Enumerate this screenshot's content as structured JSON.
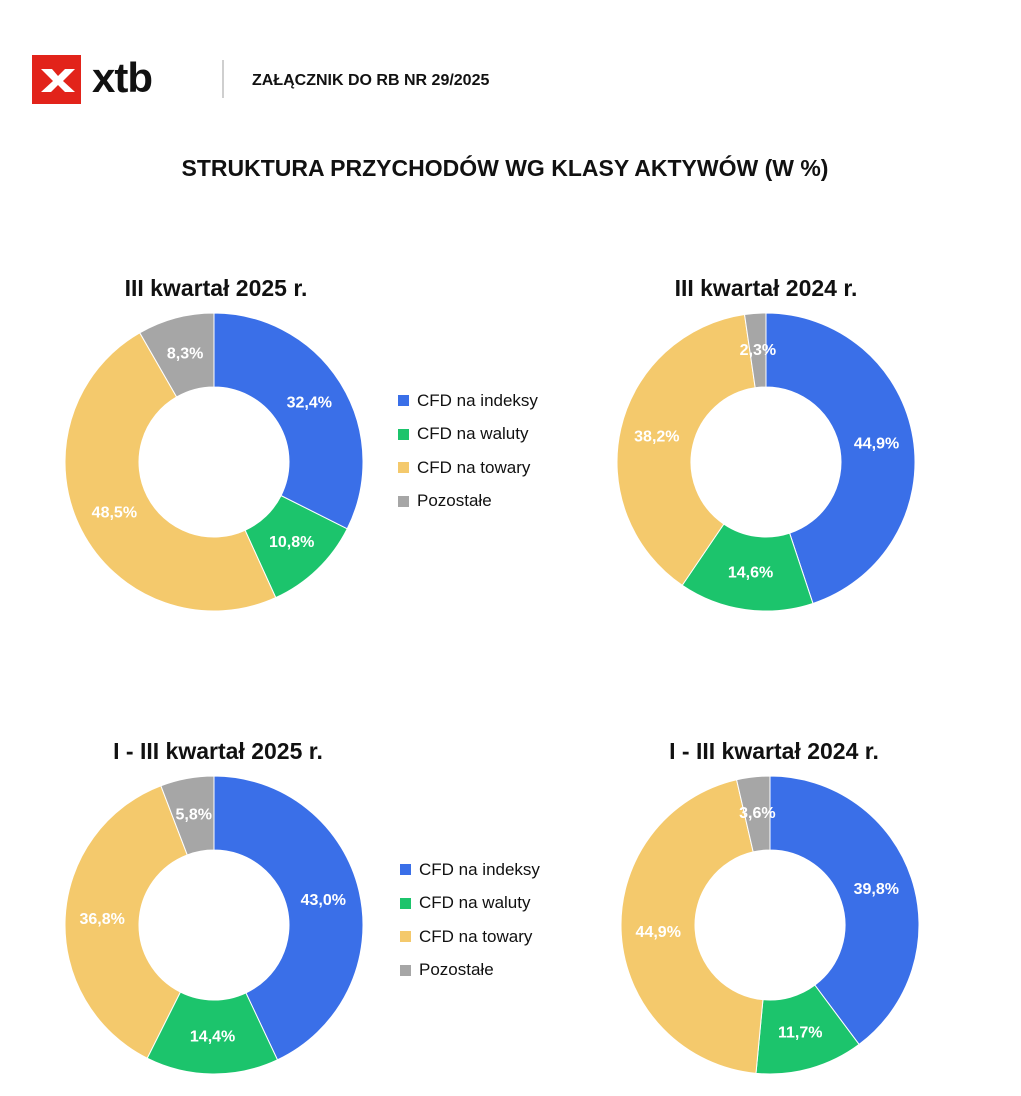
{
  "header": {
    "brand": "xtb",
    "annex_label": "ZAŁĄCZNIK DO RB NR 29/2025",
    "title": "STRUKTURA PRZYCHODÓW WG KLASY AKTYWÓW (W %)"
  },
  "colors": {
    "brand_red": "#e2231a",
    "indices": "#3a6fe8",
    "currencies": "#1cc46c",
    "commodities": "#f4c96c",
    "other": "#a6a6a6"
  },
  "legend": [
    "CFD na indeksy",
    "CFD na waluty",
    "CFD na towary",
    "Pozostałe"
  ],
  "chart_data": [
    {
      "type": "pie",
      "title": "III kwartał 2025 r.",
      "categories": [
        "CFD na indeksy",
        "CFD na waluty",
        "CFD na towary",
        "Pozostałe"
      ],
      "values": [
        32.4,
        10.8,
        48.5,
        8.3
      ],
      "labels": [
        "32,4%",
        "10,8%",
        "48,5%",
        "8,3%"
      ]
    },
    {
      "type": "pie",
      "title": "III kwartał 2024 r.",
      "categories": [
        "CFD na indeksy",
        "CFD na waluty",
        "CFD na towary",
        "Pozostałe"
      ],
      "values": [
        44.9,
        14.6,
        38.2,
        2.3
      ],
      "labels": [
        "44,9%",
        "14,6%",
        "38,2%",
        "2,3%"
      ]
    },
    {
      "type": "pie",
      "title": "I - III kwartał 2025 r.",
      "categories": [
        "CFD na indeksy",
        "CFD na waluty",
        "CFD na towary",
        "Pozostałe"
      ],
      "values": [
        43.0,
        14.4,
        36.8,
        5.8
      ],
      "labels": [
        "43,0%",
        "14,4%",
        "36,8%",
        "5,8%"
      ]
    },
    {
      "type": "pie",
      "title": "I - III kwartał 2024 r.",
      "categories": [
        "CFD na indeksy",
        "CFD na waluty",
        "CFD na towary",
        "Pozostałe"
      ],
      "values": [
        39.8,
        11.7,
        44.9,
        3.6
      ],
      "labels": [
        "39,8%",
        "11,7%",
        "44,9%",
        "3,6%"
      ]
    }
  ]
}
